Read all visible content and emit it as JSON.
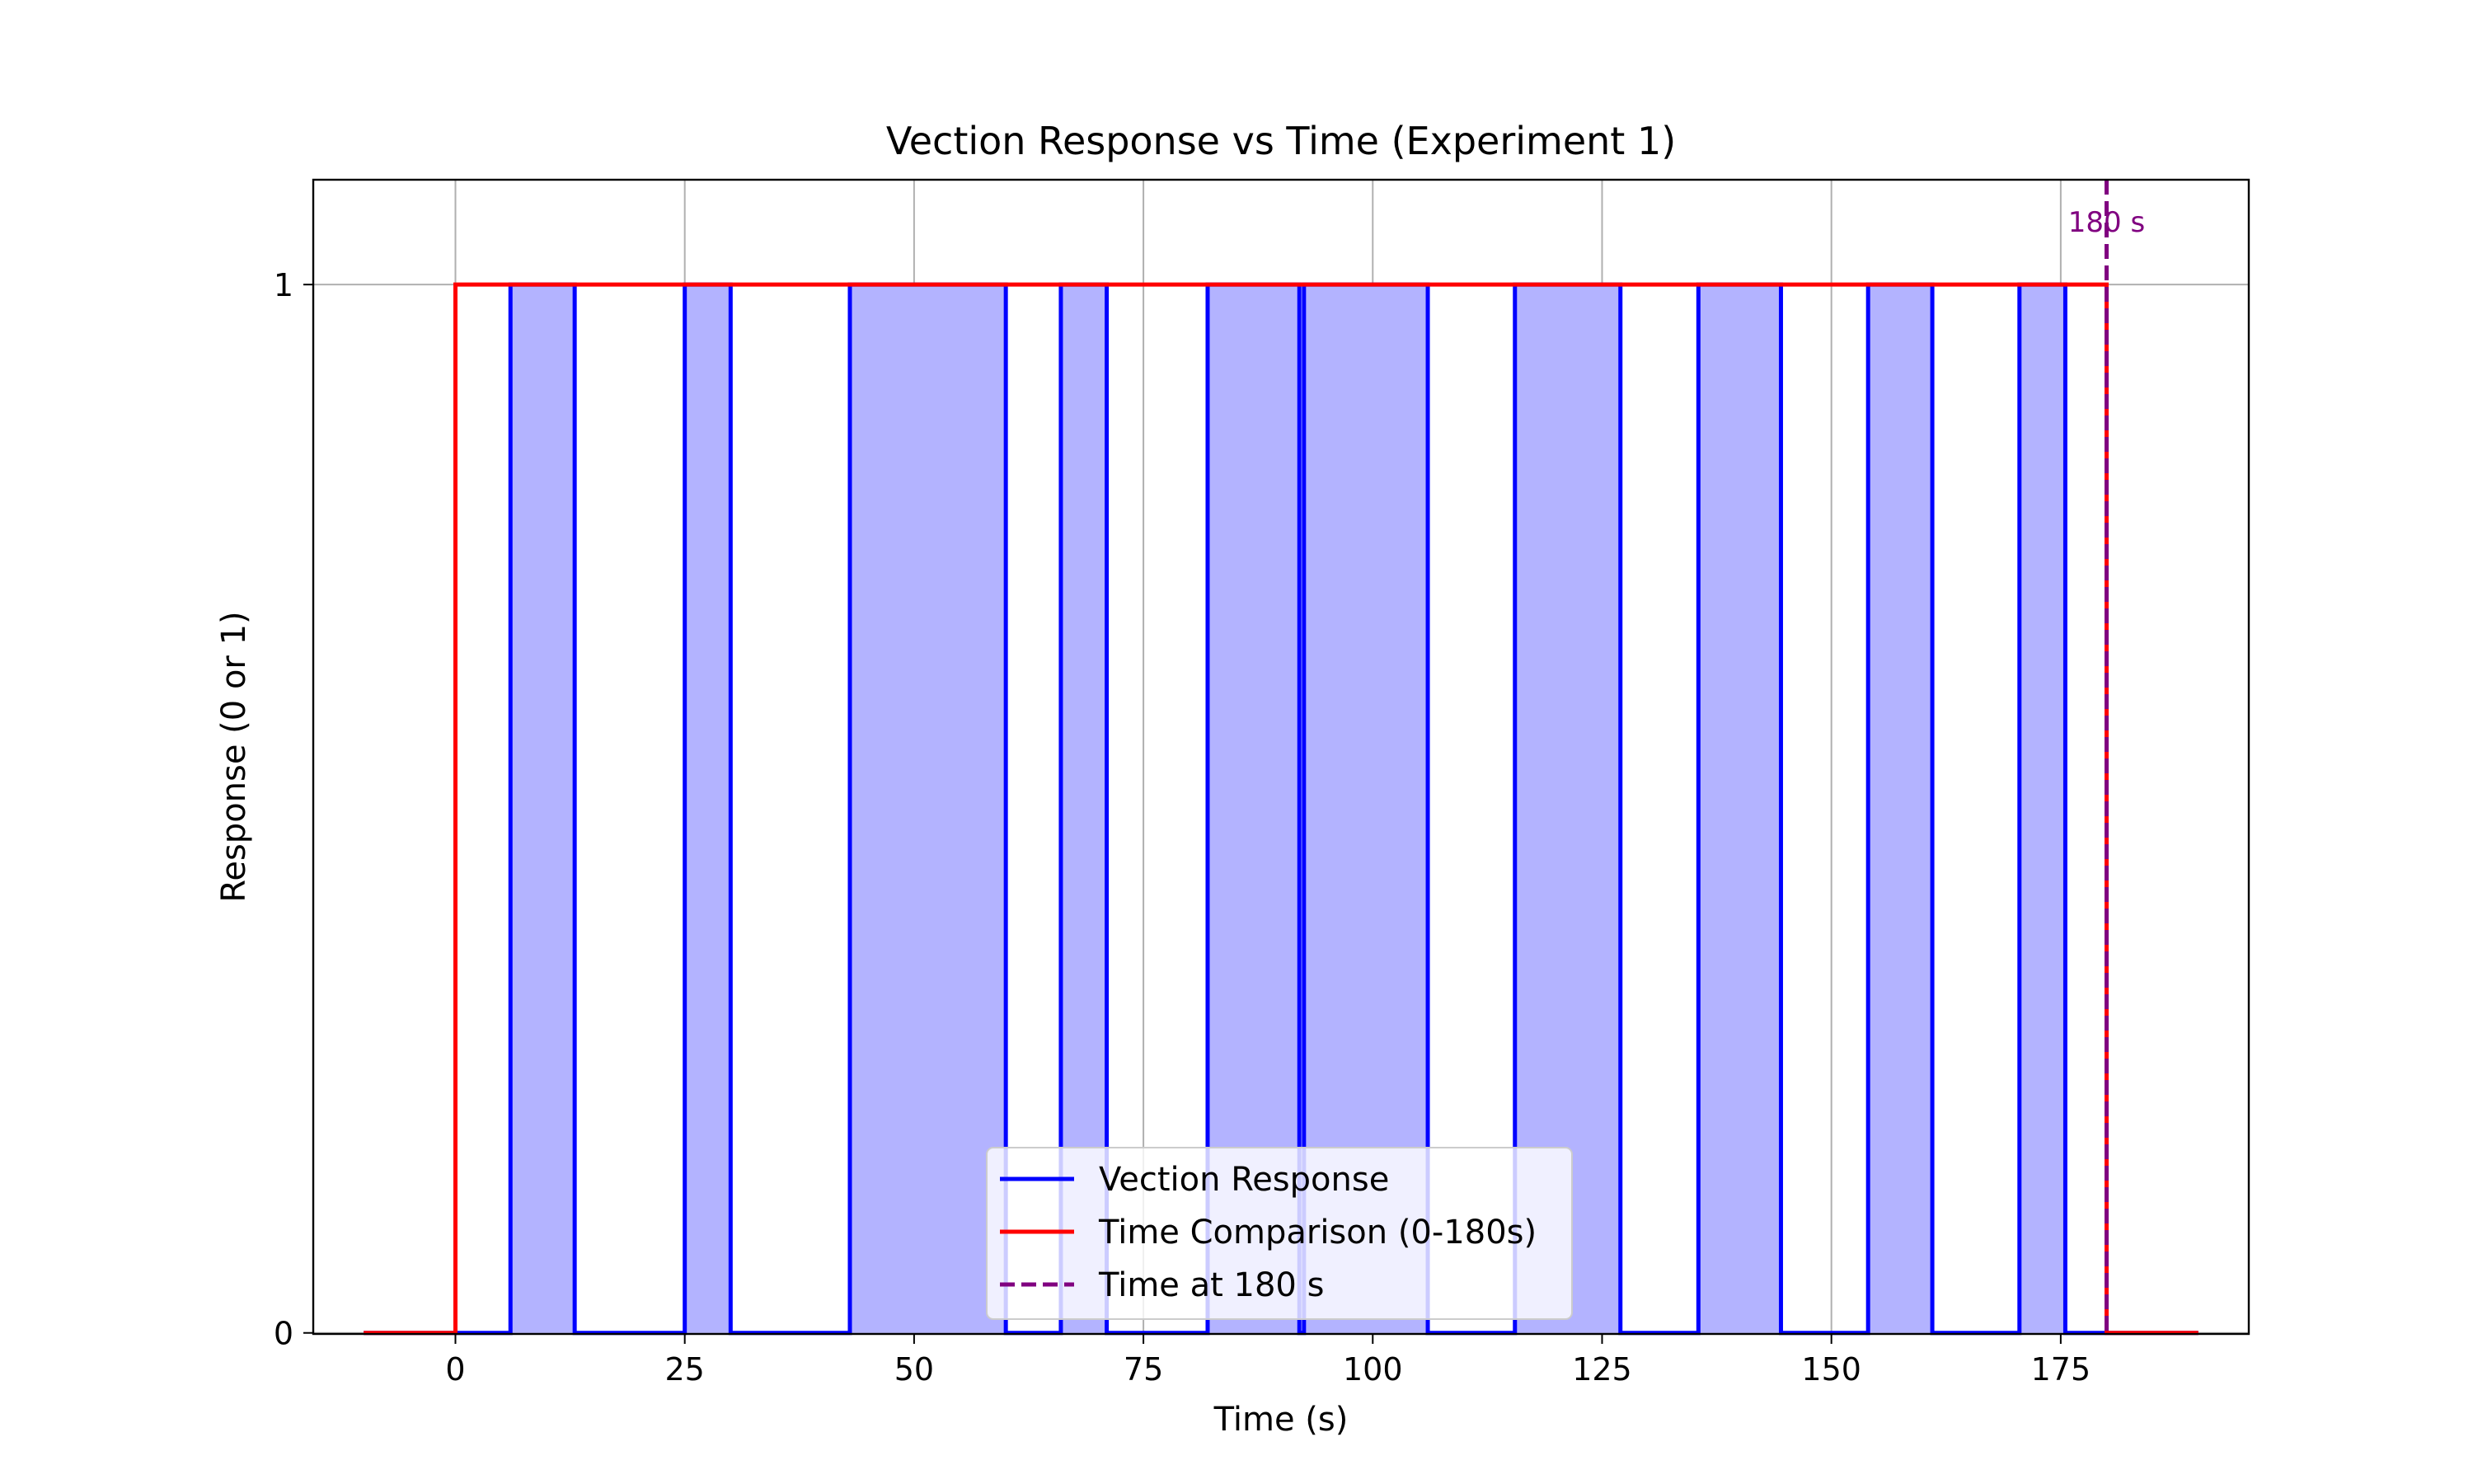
{
  "chart_data": {
    "type": "line",
    "title": "Vection Response vs Time (Experiment 1)",
    "xlabel": "Time (s)",
    "ylabel": "Response (0 or 1)",
    "xlim": [
      -15.5,
      195.5
    ],
    "ylim": [
      -0.001,
      1.1
    ],
    "xticks": [
      0,
      25,
      50,
      75,
      100,
      125,
      150,
      175
    ],
    "xtick_labels": [
      "0",
      "25",
      "50",
      "75",
      "100",
      "125",
      "150",
      "175"
    ],
    "yticks": [
      0,
      1
    ],
    "ytick_labels": [
      "0",
      "1"
    ],
    "grid": true,
    "legend_position": "lower-center",
    "series": [
      {
        "name": "Vection Response",
        "color": "#0000ff",
        "style": "step",
        "x_range": [
          -10,
          190
        ],
        "on_intervals": [
          [
            6,
            13
          ],
          [
            25,
            30
          ],
          [
            43,
            60
          ],
          [
            66,
            71
          ],
          [
            82,
            92
          ],
          [
            92.5,
            106
          ],
          [
            115.5,
            127
          ],
          [
            135.5,
            144.5
          ],
          [
            154,
            161
          ],
          [
            170.5,
            175.5
          ]
        ],
        "fill_color": "#b3b3ff"
      },
      {
        "name": "Time Comparison (0-180s)",
        "color": "#ff0000",
        "style": "step",
        "x": [
          -10,
          0,
          0,
          180,
          180,
          190
        ],
        "y": [
          0,
          0,
          1,
          1,
          0,
          0
        ]
      },
      {
        "name": "Time at 180 s",
        "color": "#800080",
        "style": "vline-dashed",
        "x": 180
      }
    ],
    "annotations": [
      {
        "text": "180 s",
        "x": 180,
        "y": 1.06,
        "color": "#800080"
      }
    ]
  }
}
